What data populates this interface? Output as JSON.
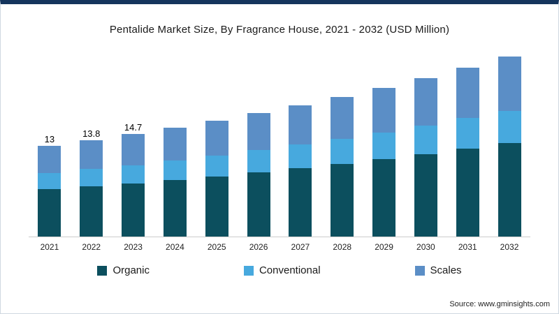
{
  "chart_data": {
    "type": "bar",
    "stacked": true,
    "title": "Pentalide Market Size, By Fragrance House, 2021 - 2032 (USD Million)",
    "xlabel": "",
    "ylabel": "",
    "ylim": [
      0,
      27
    ],
    "grid": false,
    "legend_position": "bottom",
    "categories": [
      "2021",
      "2022",
      "2023",
      "2024",
      "2025",
      "2026",
      "2027",
      "2028",
      "2029",
      "2030",
      "2031",
      "2032"
    ],
    "series": [
      {
        "name": "Organic",
        "color": "#0c4f5e",
        "values": [
          6.8,
          7.2,
          7.6,
          8.1,
          8.6,
          9.2,
          9.8,
          10.4,
          11.1,
          11.8,
          12.6,
          13.4
        ]
      },
      {
        "name": "Conventional",
        "color": "#47a9de",
        "values": [
          2.3,
          2.5,
          2.6,
          2.8,
          3.0,
          3.2,
          3.4,
          3.6,
          3.8,
          4.1,
          4.4,
          4.6
        ]
      },
      {
        "name": "Scales",
        "color": "#5b8ec6",
        "values": [
          3.9,
          4.1,
          4.5,
          4.7,
          5.0,
          5.3,
          5.6,
          6.0,
          6.4,
          6.8,
          7.2,
          7.8
        ]
      }
    ],
    "totals": [
      13,
      13.8,
      14.7,
      15.6,
      16.6,
      17.7,
      18.8,
      20.0,
      21.3,
      22.7,
      24.2,
      25.8
    ],
    "bar_labels": [
      "13",
      "13.8",
      "14.7",
      "",
      "",
      "",
      "",
      "",
      "",
      "",
      "",
      ""
    ]
  },
  "colors": {
    "top_border": "#15355d",
    "baseline": "#cccccc"
  },
  "source_text": "Source: www.gminsights.com"
}
